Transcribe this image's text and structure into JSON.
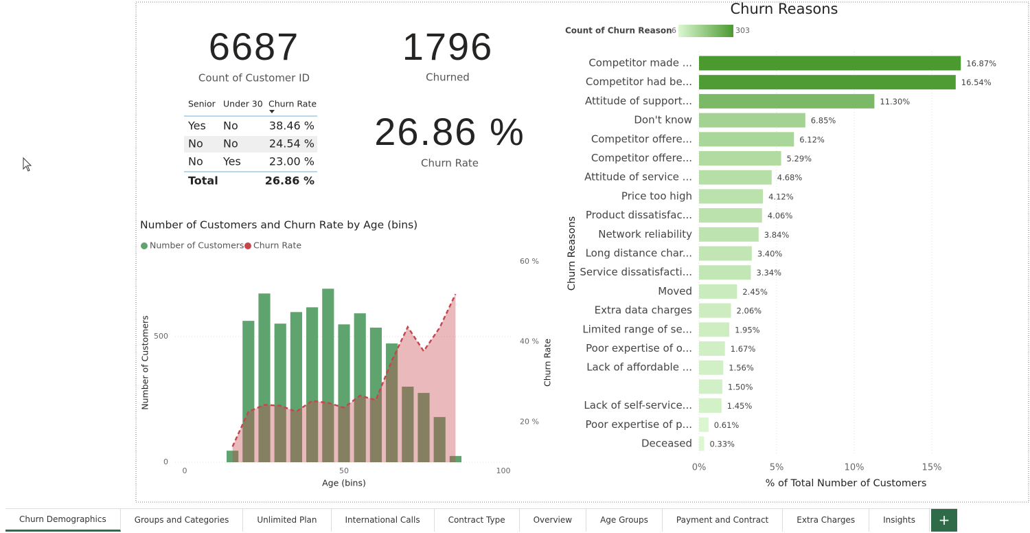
{
  "kpis": [
    {
      "value": "6687",
      "label": "Count of Customer ID"
    },
    {
      "value": "1796",
      "label": "Churned"
    },
    {
      "value": "26.86 %",
      "label": "Churn Rate"
    }
  ],
  "table": {
    "headers": [
      "Senior",
      "Under 30",
      "Churn Rate"
    ],
    "rows": [
      [
        "Yes",
        "No",
        "38.46 %"
      ],
      [
        "No",
        "No",
        "24.54 %"
      ],
      [
        "No",
        "Yes",
        "23.00 %"
      ]
    ],
    "total": [
      "Total",
      "26.86 %"
    ]
  },
  "chart_data": [
    {
      "type": "combo",
      "title": "Number of Customers and Churn Rate by Age (bins)",
      "x_label": "Age (bins)",
      "y_label": "Number of Customers",
      "y2_label": "Churn Rate",
      "x": [
        15,
        20,
        25,
        30,
        35,
        40,
        45,
        50,
        55,
        60,
        65,
        70,
        75,
        80,
        85
      ],
      "xlim": [
        0,
        100
      ],
      "xticks": [
        0,
        50,
        100
      ],
      "ylim": [
        0,
        815
      ],
      "yticks": [
        0,
        500
      ],
      "y2lim": [
        10,
        61
      ],
      "y2ticks": [
        {
          "value": 20,
          "label": "20 %"
        },
        {
          "value": 40,
          "label": "40 %"
        },
        {
          "value": 60,
          "label": "60 %"
        }
      ],
      "grid": true,
      "series": [
        {
          "name": "Number of Customers",
          "type": "bar",
          "color": "#5fa36e",
          "values": [
            46,
            563,
            672,
            552,
            598,
            617,
            691,
            549,
            593,
            536,
            473,
            301,
            276,
            180,
            25
          ]
        },
        {
          "name": "Churn Rate",
          "type": "area",
          "axis": "y2",
          "color": "#c4474f",
          "values": [
            13.9,
            22.6,
            24.3,
            24.1,
            22.6,
            25.3,
            24.8,
            23.6,
            26.6,
            25.5,
            35.3,
            43.7,
            37.7,
            43.5,
            51.9
          ]
        }
      ]
    },
    {
      "type": "hbar",
      "title": "Churn Reasons",
      "y_label": "Churn Reasons",
      "x_label": "% of Total Number of Customers",
      "categories": [
        "Competitor made ...",
        "Competitor had be...",
        "Attitude of support...",
        "Don't know",
        "Competitor offere...",
        "Competitor offere...",
        "Attitude of service ...",
        "Price too high",
        "Product dissatisfac...",
        "Network reliability",
        "Long distance char...",
        "Service dissatisfacti...",
        "Moved",
        "Extra data charges",
        "Limited range of se...",
        "Poor expertise of o...",
        "Lack of affordable ...",
        null,
        "Lack of self-service...",
        "Poor expertise of p...",
        "Deceased"
      ],
      "values": [
        16.87,
        16.54,
        11.3,
        6.85,
        6.12,
        5.29,
        4.68,
        4.12,
        4.06,
        3.84,
        3.4,
        3.34,
        2.45,
        2.06,
        1.95,
        1.67,
        1.56,
        1.5,
        1.45,
        0.61,
        0.33
      ],
      "value_labels": [
        "16.87%",
        "16.54%",
        "11.30%",
        "6.85%",
        "6.12%",
        "5.29%",
        "4.68%",
        "4.12%",
        "4.06%",
        "3.84%",
        "3.40%",
        "3.34%",
        "2.45%",
        "2.06%",
        "1.95%",
        "1.67%",
        "1.56%",
        "1.50%",
        "1.45%",
        "0.61%",
        "0.33%"
      ],
      "xlim": [
        0,
        20
      ],
      "xticks": [
        {
          "value": 0,
          "label": "0%"
        },
        {
          "value": 5,
          "label": "5%"
        },
        {
          "value": 10,
          "label": "10%"
        },
        {
          "value": 15,
          "label": "15%"
        }
      ],
      "grid": true,
      "color_scale": {
        "title": "Count of Churn Reason",
        "min": 6,
        "max": 303,
        "colors": [
          "#dcf7d2",
          "#4b9a30"
        ]
      }
    }
  ],
  "tabs": [
    "Churn Demographics",
    "Groups and Categories",
    "Unlimited Plan",
    "International Calls",
    "Contract Type",
    "Overview",
    "Age Groups",
    "Payment and Contract",
    "Extra Charges",
    "Insights"
  ],
  "active_tab": 0,
  "add_button": "+"
}
